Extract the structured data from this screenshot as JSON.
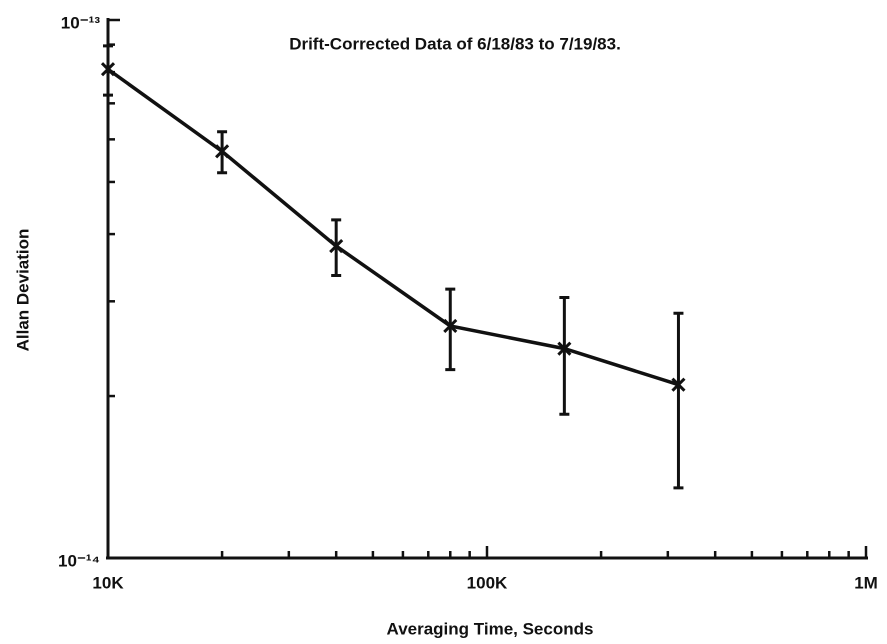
{
  "chart_data": {
    "type": "line",
    "title": "Drift-Corrected Data of 6/18/83 to 7/19/83.",
    "xlabel": "Averaging Time, Seconds",
    "ylabel": "Allan Deviation",
    "x": [
      10000,
      20000,
      40000,
      80000,
      160000,
      320000
    ],
    "series": [
      {
        "color": "#111111",
        "values": [
          8.1e-14,
          5.7e-14,
          3.8e-14,
          2.7e-14,
          2.45e-14,
          2.1e-14
        ],
        "errors": [
          8.5e-15,
          5e-15,
          4.5e-15,
          4.6e-15,
          6e-15,
          7.5e-15
        ]
      }
    ],
    "xscale": "log",
    "yscale": "log",
    "xlim": [
      10000,
      1000000
    ],
    "ylim": [
      1e-14,
      1e-13
    ],
    "xticks": [
      {
        "value": 10000,
        "label": "10K"
      },
      {
        "value": 100000,
        "label": "100K"
      },
      {
        "value": 1000000,
        "label": "1M"
      }
    ],
    "yticks": [
      {
        "value": 1e-14,
        "label": "10⁻¹⁴"
      },
      {
        "value": 1e-13,
        "label": "10⁻¹³"
      }
    ],
    "minor_xticks": [
      20000,
      30000,
      40000,
      50000,
      60000,
      70000,
      80000,
      90000,
      200000,
      300000,
      400000,
      500000,
      600000,
      700000,
      800000,
      900000
    ],
    "minor_yticks": [
      2e-14,
      3e-14,
      4e-14,
      5e-14,
      6e-14,
      7e-14,
      8e-14,
      9e-14
    ],
    "grid": false
  }
}
